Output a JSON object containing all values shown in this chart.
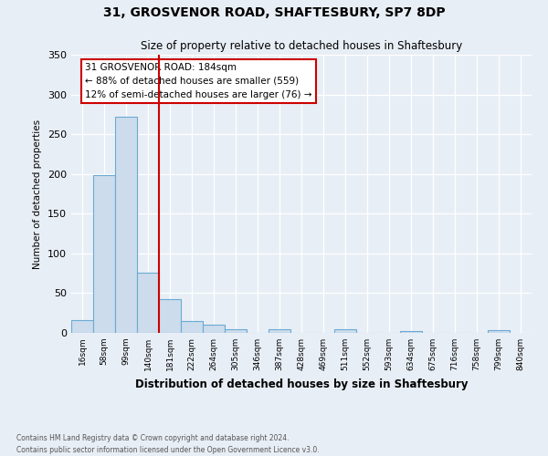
{
  "title": "31, GROSVENOR ROAD, SHAFTESBURY, SP7 8DP",
  "subtitle": "Size of property relative to detached houses in Shaftesbury",
  "xlabel": "Distribution of detached houses by size in Shaftesbury",
  "ylabel": "Number of detached properties",
  "bin_labels": [
    "16sqm",
    "58sqm",
    "99sqm",
    "140sqm",
    "181sqm",
    "222sqm",
    "264sqm",
    "305sqm",
    "346sqm",
    "387sqm",
    "428sqm",
    "469sqm",
    "511sqm",
    "552sqm",
    "593sqm",
    "634sqm",
    "675sqm",
    "716sqm",
    "758sqm",
    "799sqm",
    "840sqm"
  ],
  "bar_values": [
    16,
    199,
    272,
    76,
    42,
    15,
    10,
    5,
    0,
    5,
    0,
    0,
    5,
    0,
    0,
    2,
    0,
    0,
    0,
    3
  ],
  "bar_color": "#ccdcec",
  "bar_edge_color": "#6aaad4",
  "vline_color": "#cc0000",
  "ylim": [
    0,
    350
  ],
  "yticks": [
    0,
    50,
    100,
    150,
    200,
    250,
    300,
    350
  ],
  "annotation_title": "31 GROSVENOR ROAD: 184sqm",
  "annotation_line1": "← 88% of detached houses are smaller (559)",
  "annotation_line2": "12% of semi-detached houses are larger (76) →",
  "annotation_box_color": "#ffffff",
  "annotation_box_edge": "#cc0000",
  "footer1": "Contains HM Land Registry data © Crown copyright and database right 2024.",
  "footer2": "Contains public sector information licensed under the Open Government Licence v3.0.",
  "background_color": "#e8eef5",
  "plot_background": "#e8eef5"
}
